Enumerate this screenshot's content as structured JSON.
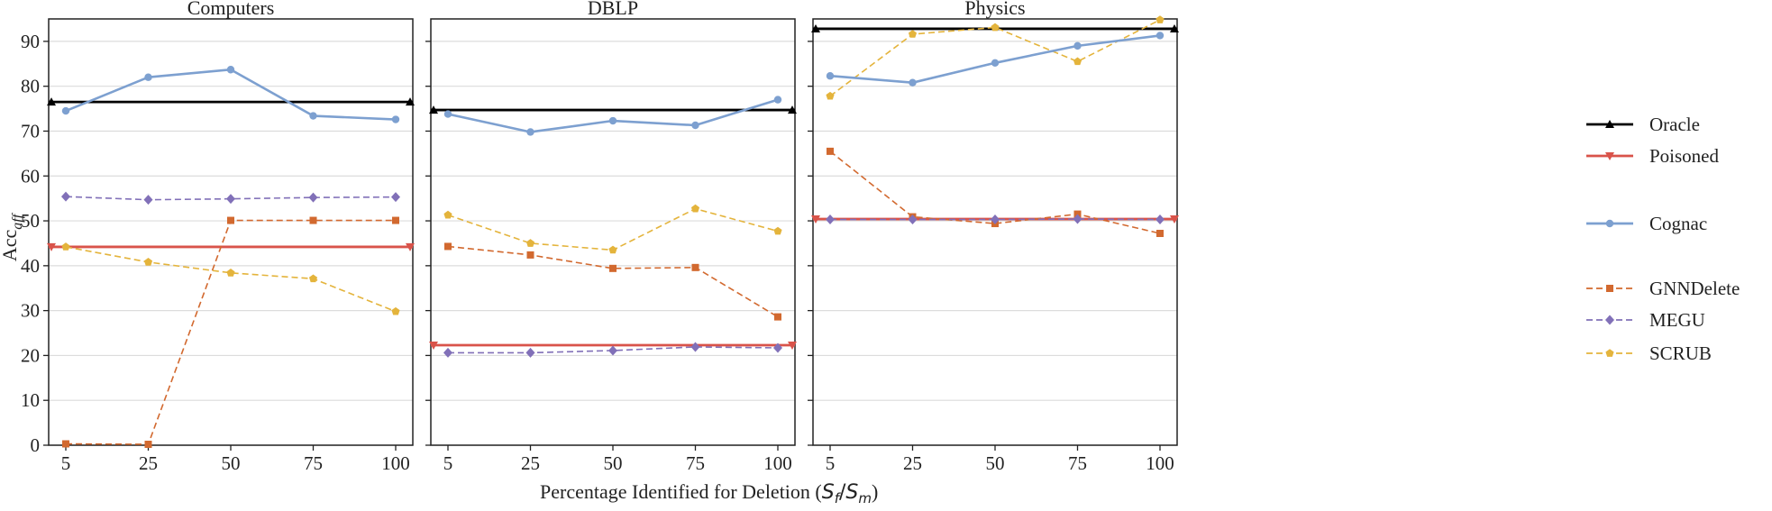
{
  "chart_data": {
    "type": "line",
    "title": "",
    "xlabel": "Percentage Identified for Deletion (",
    "xlabel_math": "S_f/S_m",
    "xlabel_parts": {
      "S": "S",
      "f": "f",
      "slash": "/",
      "m": "m",
      "close": ")"
    },
    "ylabel": "Acc",
    "ylabel_sub": "aff",
    "x": [
      5,
      25,
      50,
      75,
      100
    ],
    "x_tick_labels": [
      "5",
      "25",
      "50",
      "75",
      "100"
    ],
    "y_ticks": [
      0,
      10,
      20,
      30,
      40,
      50,
      60,
      70,
      80,
      90
    ],
    "y_tick_labels": [
      "0",
      "10",
      "20",
      "30",
      "40",
      "50",
      "60",
      "70",
      "80",
      "90"
    ],
    "ylim": [
      0,
      95
    ],
    "grid": "horizontal",
    "legend_position": "right",
    "legend": [
      {
        "name": "Oracle",
        "color": "#000000",
        "marker": "triangle-up",
        "dash": "solid"
      },
      {
        "name": "Poisoned",
        "color": "#d9534a",
        "marker": "triangle-down",
        "dash": "solid"
      },
      {
        "name": "Cognac",
        "color": "#7da0d0",
        "marker": "circle",
        "dash": "solid"
      },
      {
        "name": "GNNDelete",
        "color": "#d2692f",
        "marker": "square",
        "dash": "dashed"
      },
      {
        "name": "MEGU",
        "color": "#8170b8",
        "marker": "diamond",
        "dash": "dashed"
      },
      {
        "name": "SCRUB",
        "color": "#e4b43c",
        "marker": "pentagon",
        "dash": "dashed"
      }
    ],
    "panels": [
      {
        "title": "Computers",
        "oracle": 76.5,
        "poisoned": 44.2,
        "series": [
          {
            "name": "Cognac",
            "values": [
              74.5,
              82.0,
              83.7,
              73.4,
              72.6
            ]
          },
          {
            "name": "GNNDelete",
            "values": [
              0.3,
              0.2,
              50.1,
              50.1,
              50.1
            ]
          },
          {
            "name": "MEGU",
            "values": [
              55.4,
              54.7,
              54.9,
              55.2,
              55.3
            ]
          },
          {
            "name": "SCRUB",
            "values": [
              44.2,
              40.8,
              38.4,
              37.1,
              29.8
            ]
          }
        ]
      },
      {
        "title": "DBLP",
        "oracle": 74.7,
        "poisoned": 22.3,
        "series": [
          {
            "name": "Cognac",
            "values": [
              73.8,
              69.8,
              72.3,
              71.3,
              77.0
            ]
          },
          {
            "name": "GNNDelete",
            "values": [
              44.3,
              42.4,
              39.4,
              39.6,
              28.6
            ]
          },
          {
            "name": "MEGU",
            "values": [
              20.6,
              20.6,
              21.1,
              21.9,
              21.7
            ]
          },
          {
            "name": "SCRUB",
            "values": [
              51.3,
              45.0,
              43.5,
              52.7,
              47.7
            ]
          }
        ]
      },
      {
        "title": "Physics",
        "oracle": 92.8,
        "poisoned": 50.4,
        "series": [
          {
            "name": "Cognac",
            "values": [
              82.3,
              80.8,
              85.2,
              89.0,
              91.3
            ]
          },
          {
            "name": "GNNDelete",
            "values": [
              65.5,
              50.9,
              49.4,
              51.5,
              47.2
            ]
          },
          {
            "name": "MEGU",
            "values": [
              50.3,
              50.3,
              50.3,
              50.4,
              50.3
            ]
          },
          {
            "name": "SCRUB",
            "values": [
              77.8,
              91.6,
              93.1,
              85.5,
              94.8
            ]
          }
        ]
      }
    ]
  }
}
